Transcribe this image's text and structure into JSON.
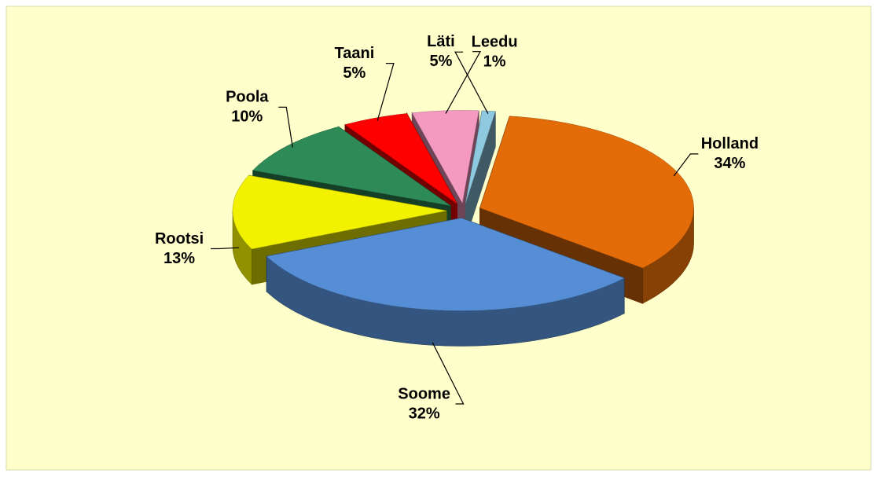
{
  "chart_data": {
    "type": "pie3d",
    "categories": [
      "Holland",
      "Soome",
      "Rootsi",
      "Poola",
      "Taani",
      "Läti",
      "Leedu"
    ],
    "values": [
      34,
      32,
      13,
      10,
      5,
      5,
      1
    ],
    "value_labels": [
      "34%",
      "32%",
      "13%",
      "10%",
      "5%",
      "5%",
      "1%"
    ],
    "colors": [
      "#e36c09",
      "#558ed5",
      "#f2f200",
      "#2e8b57",
      "#ff0000",
      "#f49ac1",
      "#8ec9e0"
    ],
    "background": "#ffffcc"
  }
}
